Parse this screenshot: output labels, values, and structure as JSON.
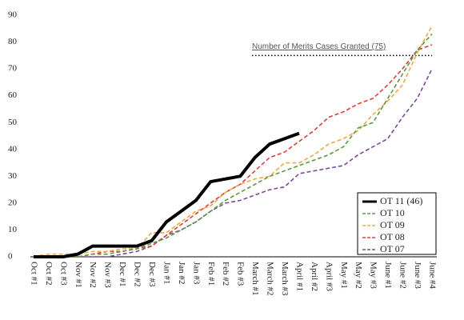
{
  "chart_data": {
    "type": "line",
    "categories": [
      "Oct #1",
      "Oct #2",
      "Oct #3",
      "Nov #1",
      "Nov #2",
      "Nov #3",
      "Dec #1",
      "Dec #2",
      "Dec #3",
      "Jan #1",
      "Jan #2",
      "Jan #3",
      "Feb #1",
      "Feb #2",
      "Feb #3",
      "March #1",
      "March #2",
      "March #3",
      "April #1",
      "April #2",
      "April #3",
      "May #1",
      "May #2",
      "May #3",
      "June #1",
      "June #2",
      "June #3",
      "June #4"
    ],
    "series": [
      {
        "name": "OT 11 (46)",
        "color": "#000000",
        "dashed": false,
        "values": [
          0,
          0,
          0,
          1,
          4,
          4,
          4,
          4,
          6,
          13,
          17,
          21,
          28,
          29,
          30,
          37,
          42,
          44,
          46,
          null,
          null,
          null,
          null,
          null,
          null,
          null,
          null,
          null
        ]
      },
      {
        "name": "OT 10",
        "color": "#5a9a3f",
        "dashed": true,
        "values": [
          0,
          0,
          0,
          0,
          1,
          1,
          2,
          3,
          5,
          7,
          10,
          13,
          17,
          21,
          24,
          27,
          30,
          32,
          34,
          36,
          38,
          41,
          48,
          50,
          59,
          68,
          77,
          83
        ]
      },
      {
        "name": "OT 09",
        "color": "#f0a848",
        "dashed": true,
        "values": [
          0,
          1,
          1,
          1,
          2,
          2,
          3,
          3,
          9,
          9,
          13,
          17,
          19,
          24,
          27,
          29,
          30,
          35,
          35,
          38,
          42,
          44,
          47,
          53,
          58,
          64,
          76,
          86
        ]
      },
      {
        "name": "OT 08",
        "color": "#d8403a",
        "dashed": true,
        "values": [
          0,
          0,
          0,
          0,
          1,
          2,
          2,
          3,
          4,
          8,
          12,
          16,
          20,
          24,
          27,
          32,
          37,
          39,
          43,
          47,
          52,
          54,
          57,
          59,
          64,
          70,
          77,
          79
        ]
      },
      {
        "name": "OT 07",
        "color": "#7a4a9a",
        "dashed": true,
        "values": [
          0,
          0,
          0,
          0,
          0,
          0,
          1,
          2,
          4,
          8,
          10,
          13,
          17,
          20,
          21,
          23,
          25,
          26,
          31,
          32,
          33,
          34,
          38,
          41,
          44,
          52,
          59,
          70
        ]
      }
    ],
    "ylim": [
      0,
      90
    ],
    "yticks": [
      0,
      10,
      20,
      30,
      40,
      50,
      60,
      70,
      80,
      90
    ],
    "reference_line": {
      "value": 75,
      "label": "Number of Merits Cases Granted (75)"
    },
    "legend": "lower right",
    "grid": false
  }
}
